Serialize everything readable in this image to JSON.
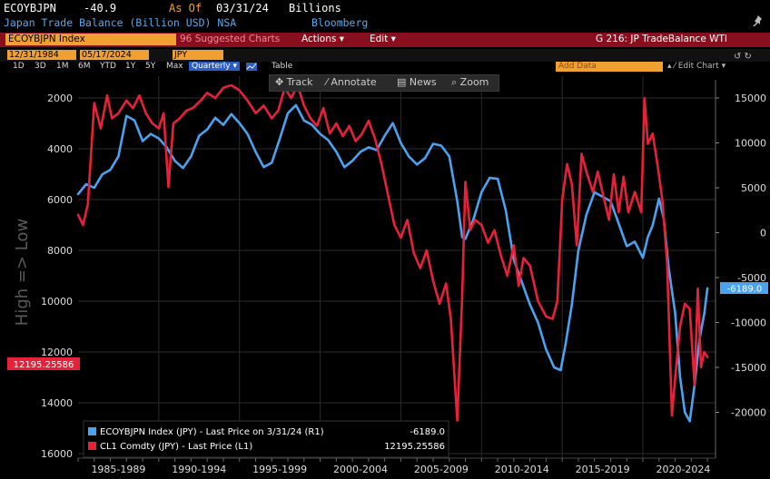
{
  "header": {
    "ticker": "ECOYBJPN",
    "last_value": "-40.9",
    "asof_label": "As Of",
    "asof_date": "03/31/24",
    "units": "Billions",
    "description": "Japan Trade Balance (Billion USD) NSA",
    "source": "Bloomberg"
  },
  "toolbar": {
    "index": "ECOYBJPN Index",
    "suggested": "96 Suggested Charts",
    "actions": "Actions",
    "edit": "Edit",
    "chart_title": "G 216: JP TradeBalance WTI"
  },
  "range": {
    "start": "12/31/1984",
    "end": "05/17/2024",
    "currency": "JPY",
    "buttons": [
      "1D",
      "3D",
      "1M",
      "6M",
      "YTD",
      "1Y",
      "5Y",
      "Max"
    ],
    "frequency": "Quarterly",
    "table_label": "Table",
    "add_data": "Add Data",
    "edit_chart": "Edit Chart"
  },
  "tools": {
    "track": "Track",
    "annotate": "Annotate",
    "news": "News",
    "zoom": "Zoom"
  },
  "colors": {
    "blue_series": "#4aa3f0",
    "red_series": "#e8213a",
    "grid": "#2b2b2b",
    "background": "#000000"
  },
  "chart_data": {
    "type": "line",
    "ylabel": "High => Low",
    "xtick_labels": [
      "1985-1989",
      "1990-1994",
      "1995-1999",
      "2000-2004",
      "2005-2009",
      "2010-2014",
      "2015-2019",
      "2020-2024"
    ],
    "left_axis": {
      "ticks": [
        "2000",
        "4000",
        "6000",
        "8000",
        "10000",
        "12000",
        "14000",
        "16000"
      ],
      "range": [
        1000,
        16000
      ],
      "inverted": true
    },
    "right_axis": {
      "ticks": [
        "15000",
        "10000",
        "5000",
        "0",
        "-5000",
        "-10000",
        "-15000",
        "-20000"
      ],
      "range": [
        -21000,
        16000
      ]
    },
    "right_label": "-6189.0",
    "left_label": "12195.25586",
    "legend": [
      {
        "label": "ECOYBJPN Index (JPY) - Last Price on 3/31/24 (R1)",
        "value": "-6189.0"
      },
      {
        "label": "CL1 Comdty (JPY) - Last Price (L1)",
        "value": "12195.25586"
      }
    ],
    "series": [
      {
        "name": "ECOYBJPN Index (JPY)",
        "axis": "right",
        "points": [
          [
            1985.0,
            4300
          ],
          [
            1985.5,
            5400
          ],
          [
            1986.0,
            5000
          ],
          [
            1986.5,
            6500
          ],
          [
            1987.0,
            7000
          ],
          [
            1987.5,
            8500
          ],
          [
            1988.0,
            13000
          ],
          [
            1988.5,
            12500
          ],
          [
            1989.0,
            10200
          ],
          [
            1989.5,
            11000
          ],
          [
            1990.0,
            10500
          ],
          [
            1990.5,
            9500
          ],
          [
            1991.0,
            8000
          ],
          [
            1991.5,
            7200
          ],
          [
            1992.0,
            8500
          ],
          [
            1992.5,
            10800
          ],
          [
            1993.0,
            11500
          ],
          [
            1993.5,
            12800
          ],
          [
            1994.0,
            12000
          ],
          [
            1994.5,
            13200
          ],
          [
            1995.0,
            12200
          ],
          [
            1995.5,
            11000
          ],
          [
            1996.0,
            9000
          ],
          [
            1996.5,
            7300
          ],
          [
            1997.0,
            7800
          ],
          [
            1997.5,
            10500
          ],
          [
            1998.0,
            13300
          ],
          [
            1998.5,
            14200
          ],
          [
            1999.0,
            12500
          ],
          [
            1999.5,
            12000
          ],
          [
            2000.0,
            11000
          ],
          [
            2000.5,
            10300
          ],
          [
            2001.0,
            9000
          ],
          [
            2001.5,
            7300
          ],
          [
            2002.0,
            8000
          ],
          [
            2002.5,
            9000
          ],
          [
            2003.0,
            9500
          ],
          [
            2003.5,
            9200
          ],
          [
            2004.0,
            10800
          ],
          [
            2004.5,
            12200
          ],
          [
            2005.0,
            10000
          ],
          [
            2005.5,
            8500
          ],
          [
            2006.0,
            7600
          ],
          [
            2006.5,
            8300
          ],
          [
            2007.0,
            9900
          ],
          [
            2007.5,
            9700
          ],
          [
            2008.0,
            8500
          ],
          [
            2008.5,
            3500
          ],
          [
            2008.8,
            -500
          ],
          [
            2009.0,
            -700
          ],
          [
            2009.5,
            1500
          ],
          [
            2010.0,
            4500
          ],
          [
            2010.5,
            6100
          ],
          [
            2011.0,
            6000
          ],
          [
            2011.5,
            2500
          ],
          [
            2012.0,
            -3000
          ],
          [
            2012.5,
            -5500
          ],
          [
            2013.0,
            -8000
          ],
          [
            2013.5,
            -10000
          ],
          [
            2014.0,
            -13000
          ],
          [
            2014.5,
            -15000
          ],
          [
            2014.9,
            -15300
          ],
          [
            2015.2,
            -12500
          ],
          [
            2015.6,
            -8000
          ],
          [
            2016.0,
            -2000
          ],
          [
            2016.5,
            2000
          ],
          [
            2017.0,
            4500
          ],
          [
            2017.5,
            4000
          ],
          [
            2018.0,
            3500
          ],
          [
            2018.5,
            1000
          ],
          [
            2019.0,
            -1500
          ],
          [
            2019.5,
            -1000
          ],
          [
            2020.0,
            -2800
          ],
          [
            2020.3,
            -500
          ],
          [
            2020.6,
            800
          ],
          [
            2021.0,
            3800
          ],
          [
            2021.3,
            1500
          ],
          [
            2021.6,
            -4000
          ],
          [
            2022.0,
            -9000
          ],
          [
            2022.3,
            -16000
          ],
          [
            2022.6,
            -20000
          ],
          [
            2022.9,
            -21000
          ],
          [
            2023.2,
            -17000
          ],
          [
            2023.5,
            -12000
          ],
          [
            2023.8,
            -9000
          ],
          [
            2024.0,
            -6189
          ]
        ]
      },
      {
        "name": "CL1 Comdty (JPY)",
        "axis": "left",
        "points": [
          [
            1985.0,
            6600
          ],
          [
            1985.3,
            7000
          ],
          [
            1985.6,
            6200
          ],
          [
            1986.0,
            2200
          ],
          [
            1986.4,
            3200
          ],
          [
            1986.8,
            1900
          ],
          [
            1987.1,
            2800
          ],
          [
            1987.5,
            2600
          ],
          [
            1988.0,
            2100
          ],
          [
            1988.4,
            2400
          ],
          [
            1988.8,
            1900
          ],
          [
            1989.2,
            2600
          ],
          [
            1989.6,
            3000
          ],
          [
            1990.0,
            3200
          ],
          [
            1990.3,
            2600
          ],
          [
            1990.6,
            5500
          ],
          [
            1990.9,
            3000
          ],
          [
            1991.3,
            2800
          ],
          [
            1991.7,
            2500
          ],
          [
            1992.1,
            2400
          ],
          [
            1992.6,
            2100
          ],
          [
            1993.0,
            1800
          ],
          [
            1993.5,
            2000
          ],
          [
            1994.0,
            1600
          ],
          [
            1994.5,
            1500
          ],
          [
            1995.0,
            1700
          ],
          [
            1995.5,
            2100
          ],
          [
            1996.0,
            2600
          ],
          [
            1996.5,
            2300
          ],
          [
            1997.0,
            2800
          ],
          [
            1997.4,
            2500
          ],
          [
            1997.8,
            1600
          ],
          [
            1998.2,
            2000
          ],
          [
            1998.6,
            1500
          ],
          [
            1999.0,
            2300
          ],
          [
            1999.4,
            2800
          ],
          [
            1999.8,
            3100
          ],
          [
            2000.2,
            2400
          ],
          [
            2000.6,
            3400
          ],
          [
            2001.0,
            3000
          ],
          [
            2001.4,
            3500
          ],
          [
            2001.8,
            3100
          ],
          [
            2002.2,
            3700
          ],
          [
            2002.6,
            3400
          ],
          [
            2003.0,
            2900
          ],
          [
            2003.4,
            3600
          ],
          [
            2003.8,
            4600
          ],
          [
            2004.2,
            5800
          ],
          [
            2004.6,
            7000
          ],
          [
            2005.0,
            7500
          ],
          [
            2005.4,
            6800
          ],
          [
            2005.8,
            8100
          ],
          [
            2006.2,
            8700
          ],
          [
            2006.6,
            8000
          ],
          [
            2007.0,
            9200
          ],
          [
            2007.4,
            10100
          ],
          [
            2007.8,
            9300
          ],
          [
            2008.1,
            10700
          ],
          [
            2008.5,
            14700
          ],
          [
            2008.8,
            9800
          ],
          [
            2009.0,
            5300
          ],
          [
            2009.3,
            7200
          ],
          [
            2009.6,
            6800
          ],
          [
            2010.0,
            7000
          ],
          [
            2010.4,
            7700
          ],
          [
            2010.8,
            7200
          ],
          [
            2011.2,
            8200
          ],
          [
            2011.6,
            9000
          ],
          [
            2012.0,
            7800
          ],
          [
            2012.3,
            9400
          ],
          [
            2012.6,
            8300
          ],
          [
            2013.0,
            8600
          ],
          [
            2013.5,
            10000
          ],
          [
            2014.0,
            10600
          ],
          [
            2014.4,
            10700
          ],
          [
            2014.7,
            10000
          ],
          [
            2015.0,
            6000
          ],
          [
            2015.3,
            4600
          ],
          [
            2015.6,
            5400
          ],
          [
            2015.9,
            7800
          ],
          [
            2016.2,
            4200
          ],
          [
            2016.5,
            4900
          ],
          [
            2016.9,
            5700
          ],
          [
            2017.2,
            4900
          ],
          [
            2017.6,
            6000
          ],
          [
            2017.9,
            6800
          ],
          [
            2018.2,
            5000
          ],
          [
            2018.5,
            6500
          ],
          [
            2018.8,
            5100
          ],
          [
            2019.1,
            6500
          ],
          [
            2019.5,
            5700
          ],
          [
            2019.9,
            6500
          ],
          [
            2020.1,
            2000
          ],
          [
            2020.3,
            3800
          ],
          [
            2020.6,
            3400
          ],
          [
            2020.9,
            4600
          ],
          [
            2021.2,
            6000
          ],
          [
            2021.5,
            8500
          ],
          [
            2021.8,
            14500
          ],
          [
            2022.0,
            13000
          ],
          [
            2022.3,
            11000
          ],
          [
            2022.6,
            10100
          ],
          [
            2022.9,
            10300
          ],
          [
            2023.2,
            13300
          ],
          [
            2023.4,
            9500
          ],
          [
            2023.6,
            12600
          ],
          [
            2023.8,
            12000
          ],
          [
            2024.0,
            12195
          ]
        ]
      }
    ]
  }
}
